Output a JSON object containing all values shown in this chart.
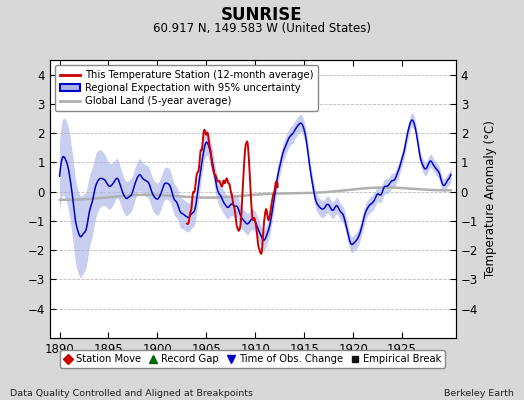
{
  "title": "SUNRISE",
  "subtitle": "60.917 N, 149.583 W (United States)",
  "ylabel": "Temperature Anomaly (°C)",
  "xlabel_left": "Data Quality Controlled and Aligned at Breakpoints",
  "xlabel_right": "Berkeley Earth",
  "xlim": [
    1889.0,
    1930.5
  ],
  "ylim": [
    -5,
    4.5
  ],
  "yticks": [
    -4,
    -3,
    -2,
    -1,
    0,
    1,
    2,
    3,
    4
  ],
  "xticks": [
    1890,
    1895,
    1900,
    1905,
    1910,
    1915,
    1920,
    1925
  ],
  "bg_color": "#d8d8d8",
  "plot_bg_color": "#ffffff",
  "regional_line_color": "#0000cc",
  "regional_fill_color": "#aab4e8",
  "station_line_color": "#cc0000",
  "global_line_color": "#b0b0b0",
  "legend_labels": [
    "This Temperature Station (12-month average)",
    "Regional Expectation with 95% uncertainty",
    "Global Land (5-year average)"
  ],
  "bottom_legend": [
    {
      "marker": "D",
      "color": "#cc0000",
      "label": "Station Move"
    },
    {
      "marker": "^",
      "color": "#006600",
      "label": "Record Gap"
    },
    {
      "marker": "v",
      "color": "#0000cc",
      "label": "Time of Obs. Change"
    },
    {
      "marker": "s",
      "color": "#111111",
      "label": "Empirical Break"
    }
  ]
}
